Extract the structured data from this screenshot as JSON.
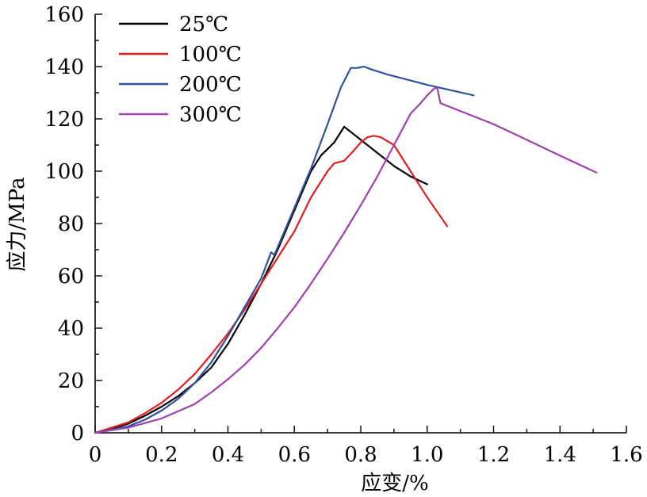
{
  "chart_data": {
    "type": "line",
    "xlabel": "应变/%",
    "ylabel": "应力/MPa",
    "xlim": [
      0,
      1.6
    ],
    "ylim": [
      0,
      160
    ],
    "xticks": [
      0,
      0.2,
      0.4,
      0.6,
      0.8,
      1.0,
      1.2,
      1.4,
      1.6
    ],
    "xtick_labels": [
      "0",
      "0.2",
      "0.4",
      "0.6",
      "0.8",
      "1.0",
      "1.2",
      "1.4",
      "1.6"
    ],
    "yticks": [
      0,
      20,
      40,
      60,
      80,
      100,
      120,
      140,
      160
    ],
    "ytick_labels": [
      "0",
      "20",
      "40",
      "60",
      "80",
      "100",
      "120",
      "140",
      "160"
    ],
    "legend_position": "top-left",
    "grid": false,
    "series": [
      {
        "name": "25℃",
        "color": "#000000",
        "x": [
          0,
          0.05,
          0.1,
          0.15,
          0.2,
          0.25,
          0.3,
          0.35,
          0.4,
          0.45,
          0.5,
          0.55,
          0.6,
          0.65,
          0.68,
          0.72,
          0.75,
          0.8,
          0.85,
          0.9,
          0.95,
          1.0
        ],
        "y": [
          0,
          1.5,
          3.5,
          6.5,
          10,
          14,
          19,
          25,
          34,
          45,
          57,
          70,
          85,
          100,
          106,
          111,
          117,
          112,
          107,
          102,
          98,
          95
        ]
      },
      {
        "name": "100℃",
        "color": "#e02020",
        "x": [
          0,
          0.05,
          0.1,
          0.15,
          0.2,
          0.25,
          0.3,
          0.35,
          0.4,
          0.45,
          0.5,
          0.55,
          0.6,
          0.65,
          0.7,
          0.72,
          0.75,
          0.78,
          0.8,
          0.82,
          0.84,
          0.86,
          0.9,
          0.95,
          1.0,
          1.06
        ],
        "y": [
          0,
          2,
          4,
          7.5,
          11.5,
          16.5,
          22.5,
          30,
          38,
          47,
          57,
          67,
          77,
          90,
          100,
          103,
          104,
          108,
          111,
          113,
          113.5,
          113,
          110,
          100,
          90,
          79
        ]
      },
      {
        "name": "200℃",
        "color": "#3050a0",
        "x": [
          0,
          0.05,
          0.1,
          0.15,
          0.2,
          0.25,
          0.3,
          0.35,
          0.4,
          0.45,
          0.5,
          0.53,
          0.54,
          0.6,
          0.65,
          0.7,
          0.74,
          0.77,
          0.79,
          0.81,
          0.83,
          0.88,
          1.0,
          1.14
        ],
        "y": [
          0,
          1.2,
          2.5,
          5,
          8.5,
          13,
          19,
          27,
          37,
          48,
          59,
          69,
          68,
          86,
          101,
          118,
          132,
          139.5,
          139.5,
          140,
          139,
          137,
          133,
          129
        ]
      },
      {
        "name": "300℃",
        "color": "#a040b0",
        "x": [
          0,
          0.1,
          0.2,
          0.3,
          0.35,
          0.4,
          0.45,
          0.5,
          0.55,
          0.6,
          0.65,
          0.7,
          0.75,
          0.8,
          0.85,
          0.9,
          0.95,
          0.98,
          1.0,
          1.02,
          1.03,
          1.04,
          1.1,
          1.2,
          1.3,
          1.4,
          1.51
        ],
        "y": [
          0,
          2,
          5.5,
          11,
          15.5,
          20.5,
          26,
          32.5,
          40,
          48,
          57,
          66.5,
          76.5,
          87,
          98,
          110,
          122,
          126,
          129,
          131.5,
          132,
          126,
          123,
          118,
          112,
          106,
          99.5
        ]
      }
    ]
  }
}
